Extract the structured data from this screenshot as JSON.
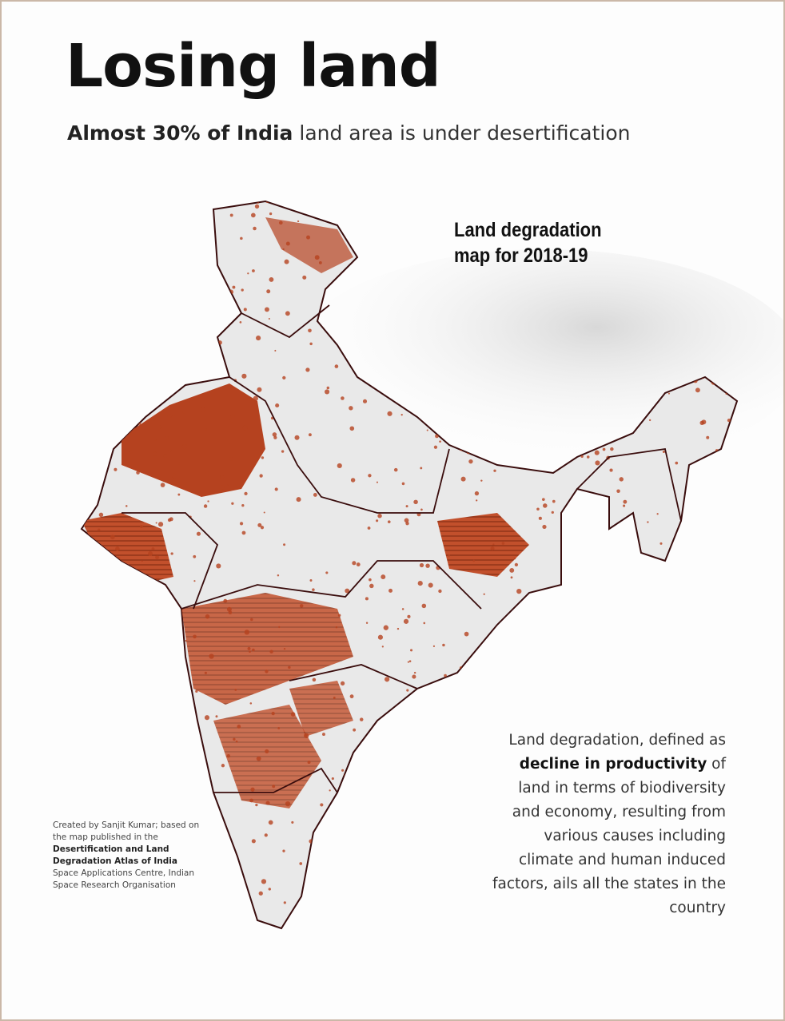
{
  "title": "Losing land",
  "subtitle": {
    "bold": "Almost 30% of India",
    "rest": " land area is under desertification"
  },
  "map_label": {
    "line1": "Land degradation",
    "line2": "map for 2018-19"
  },
  "description": {
    "part1": "Land degradation, defined as ",
    "bold": "decline in productivity",
    "part2": " of land in terms of biodiversity and economy, resulting from various causes including climate and human induced factors, ails all the states in the country"
  },
  "credit": {
    "part1": "Created by Sanjit Kumar; based on the map published in the ",
    "bold1": "Desertification and Land Degradation Atlas of India",
    "part2": " Space Applications Centre, Indian Space Research Organisation"
  },
  "colors": {
    "degraded": "#b5421f",
    "border": "#3a0d0d",
    "land": "#e9e9e9"
  }
}
